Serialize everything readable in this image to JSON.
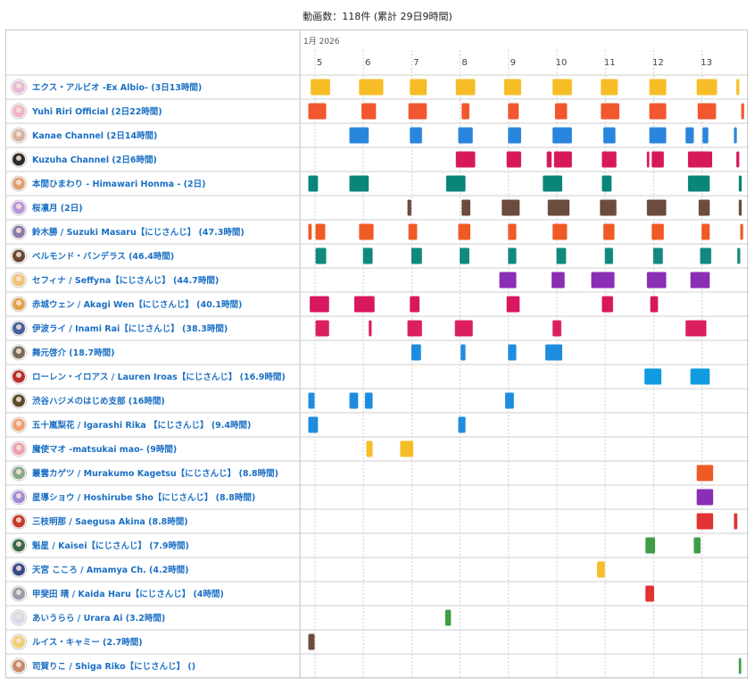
{
  "summary": "動画数：118件 (累計 29日9時間)",
  "timeline": {
    "month_label": "1月 2026",
    "ticks": [
      "5",
      "6",
      "7",
      "8",
      "9",
      "10",
      "11",
      "12",
      "13"
    ]
  },
  "channels": [
    {
      "label": "エクス・アルビオ -Ex Albio- (3日13時間)",
      "avatar": "#e7b9d9",
      "color": "#f6bd27",
      "streams": [
        [
          4.8,
          5.2
        ],
        [
          5.8,
          6.3
        ],
        [
          6.85,
          7.2
        ],
        [
          7.8,
          8.2
        ],
        [
          8.8,
          9.15
        ],
        [
          9.8,
          10.2
        ],
        [
          10.8,
          11.15
        ],
        [
          11.8,
          12.15
        ],
        [
          12.78,
          13.2
        ],
        [
          13.6,
          13.66
        ]
      ]
    },
    {
      "label": "Yuhi Riri Official (2日22時間)",
      "avatar": "#f2b3c7",
      "color": "#f2572f",
      "streams": [
        [
          4.75,
          5.12
        ],
        [
          5.85,
          6.15
        ],
        [
          6.82,
          7.2
        ],
        [
          7.92,
          8.08
        ],
        [
          8.88,
          9.1
        ],
        [
          9.85,
          10.1
        ],
        [
          10.8,
          11.18
        ],
        [
          11.8,
          12.15
        ],
        [
          12.8,
          13.18
        ],
        [
          13.7,
          13.76
        ]
      ]
    },
    {
      "label": "Kanae Channel (2日14時間)",
      "avatar": "#d6b3a0",
      "color": "#2a86dd",
      "streams": [
        [
          5.6,
          6.0
        ],
        [
          6.85,
          7.1
        ],
        [
          7.85,
          8.15
        ],
        [
          8.88,
          9.15
        ],
        [
          9.8,
          10.2
        ],
        [
          10.85,
          11.1
        ],
        [
          11.8,
          12.15
        ],
        [
          12.55,
          12.72
        ],
        [
          12.9,
          13.02
        ],
        [
          13.55,
          13.61
        ]
      ]
    },
    {
      "label": "Kuzuha Channel (2日6時間)",
      "avatar": "#2b2b2b",
      "color": "#d7185b",
      "streams": [
        [
          7.8,
          8.2
        ],
        [
          8.85,
          9.15
        ],
        [
          9.68,
          9.78
        ],
        [
          9.83,
          10.2
        ],
        [
          10.82,
          11.12
        ],
        [
          11.75,
          11.8
        ],
        [
          11.85,
          12.1
        ],
        [
          12.6,
          13.1
        ],
        [
          13.6,
          13.66
        ]
      ]
    },
    {
      "label": "本間ひまわり - Himawari Honma - (2日)",
      "avatar": "#e3a070",
      "color": "#0a857a",
      "streams": [
        [
          4.75,
          4.95
        ],
        [
          5.6,
          6.0
        ],
        [
          7.6,
          8.0
        ],
        [
          9.6,
          10.0
        ],
        [
          10.82,
          11.02
        ],
        [
          12.6,
          13.05
        ],
        [
          13.65,
          13.71
        ]
      ]
    },
    {
      "label": "桜凛月 (2日)",
      "avatar": "#b897d9",
      "color": "#6b4c3d",
      "streams": [
        [
          6.8,
          6.88
        ],
        [
          7.92,
          8.1
        ],
        [
          8.75,
          9.12
        ],
        [
          9.7,
          10.15
        ],
        [
          10.78,
          11.12
        ],
        [
          11.75,
          12.15
        ],
        [
          12.82,
          13.05
        ],
        [
          13.65,
          13.71
        ]
      ]
    },
    {
      "label": "鈴木勝 / Suzuki Masaru【にじさんじ】 (47.3時間)",
      "avatar": "#8a7ba8",
      "color": "#f05a24",
      "streams": [
        [
          4.75,
          4.82
        ],
        [
          4.9,
          5.1
        ],
        [
          5.8,
          6.1
        ],
        [
          6.82,
          7.0
        ],
        [
          7.85,
          8.1
        ],
        [
          8.88,
          9.05
        ],
        [
          9.8,
          10.1
        ],
        [
          10.85,
          11.08
        ],
        [
          11.85,
          12.1
        ],
        [
          12.88,
          13.05
        ],
        [
          13.68,
          13.74
        ]
      ]
    },
    {
      "label": "ベルモンド・バンデラス (46.4時間)",
      "avatar": "#6a4a34",
      "color": "#12897f",
      "streams": [
        [
          4.9,
          5.12
        ],
        [
          5.88,
          6.08
        ],
        [
          6.88,
          7.1
        ],
        [
          7.88,
          8.08
        ],
        [
          8.88,
          9.05
        ],
        [
          9.88,
          10.08
        ],
        [
          10.88,
          11.05
        ],
        [
          11.88,
          12.08
        ],
        [
          12.85,
          13.08
        ],
        [
          13.62,
          13.68
        ]
      ]
    },
    {
      "label": "セフィナ / Seffyna【にじさんじ】 (44.7時間)",
      "avatar": "#f2c27a",
      "color": "#8a2eb5",
      "streams": [
        [
          8.7,
          9.05
        ],
        [
          9.78,
          10.05
        ],
        [
          10.6,
          11.08
        ],
        [
          11.75,
          12.15
        ],
        [
          12.65,
          13.05
        ]
      ]
    },
    {
      "label": "赤城ウェン / Akagi Wen【にじさんじ】 (40.1時間)",
      "avatar": "#e2a24a",
      "color": "#d8185e",
      "streams": [
        [
          4.78,
          5.18
        ],
        [
          5.7,
          6.12
        ],
        [
          6.85,
          7.05
        ],
        [
          8.85,
          9.12
        ],
        [
          10.82,
          11.05
        ],
        [
          11.82,
          11.98
        ]
      ]
    },
    {
      "label": "伊波ライ / Inami Rai【にじさんじ】 (38.3時間)",
      "avatar": "#4a5fa0",
      "color": "#db1f5f",
      "streams": [
        [
          4.9,
          5.18
        ],
        [
          6.0,
          6.06
        ],
        [
          6.8,
          7.1
        ],
        [
          7.78,
          8.15
        ],
        [
          9.8,
          9.98
        ],
        [
          12.55,
          12.98
        ]
      ]
    },
    {
      "label": "舞元啓介 (18.7時間)",
      "avatar": "#7a6a5a",
      "color": "#1e8de0",
      "streams": [
        [
          6.88,
          7.08
        ],
        [
          7.9,
          8.0
        ],
        [
          8.88,
          9.05
        ],
        [
          9.65,
          10.0
        ]
      ]
    },
    {
      "label": "ローレン・イロアス / Lauren Iroas【にじさんじ】 (16.9時間)",
      "avatar": "#b83030",
      "color": "#109be0",
      "streams": [
        [
          11.7,
          12.05
        ],
        [
          12.65,
          13.05
        ]
      ]
    },
    {
      "label": "渋谷ハジメのはじめ支部 (16時間)",
      "avatar": "#5b4b2b",
      "color": "#1e8de0",
      "streams": [
        [
          4.75,
          4.88
        ],
        [
          5.6,
          5.78
        ],
        [
          5.92,
          6.08
        ],
        [
          8.82,
          9.0
        ]
      ]
    },
    {
      "label": "五十嵐梨花 / Igarashi Rika 【にじさんじ】 (9.4時間)",
      "avatar": "#f0a070",
      "color": "#1e8de0",
      "streams": [
        [
          4.75,
          4.95
        ],
        [
          7.85,
          8.0
        ]
      ]
    },
    {
      "label": "魔使マオ -matsukai mao- (9時間)",
      "avatar": "#f0a0b0",
      "color": "#f6bd27",
      "streams": [
        [
          5.95,
          6.08
        ],
        [
          6.65,
          6.92
        ]
      ]
    },
    {
      "label": "叢雲カゲツ / Murakumo Kagetsu【にじさんじ】 (8.8時間)",
      "avatar": "#88a888",
      "color": "#f05a24",
      "streams": [
        [
          12.78,
          13.12
        ]
      ]
    },
    {
      "label": "星導ショウ / Hoshirube Sho【にじさんじ】 (8.8時間)",
      "avatar": "#a28ad8",
      "color": "#8a2eb5",
      "streams": [
        [
          12.78,
          13.12
        ]
      ]
    },
    {
      "label": "三枝明那 / Saegusa Akina (8.8時間)",
      "avatar": "#c83a2a",
      "color": "#e23232",
      "streams": [
        [
          12.78,
          13.12
        ],
        [
          13.55,
          13.62
        ]
      ]
    },
    {
      "label": "魁星 / Kaisei【にじさんじ】 (7.9時間)",
      "avatar": "#3a6a4a",
      "color": "#3f9d48",
      "streams": [
        [
          11.72,
          11.92
        ],
        [
          12.72,
          12.86
        ]
      ]
    },
    {
      "label": "天宮 こころ / Amamya Ch. (4.2時間)",
      "avatar": "#3a4a8a",
      "color": "#f6bd27",
      "streams": [
        [
          10.72,
          10.88
        ]
      ]
    },
    {
      "label": "甲斐田 晴 / Kaida Haru【にじさんじ】 (4時間)",
      "avatar": "#9a9aa8",
      "color": "#e23232",
      "streams": [
        [
          11.72,
          11.9
        ]
      ]
    },
    {
      "label": "あいうらら / Urara Ai (3.2時間)",
      "avatar": "#d8d8e8",
      "color": "#3f9d48",
      "streams": [
        [
          7.58,
          7.7
        ]
      ]
    },
    {
      "label": "ルイス・キャミー (2.7時間)",
      "avatar": "#f0d070",
      "color": "#6b4c3d",
      "streams": [
        [
          4.75,
          4.88
        ]
      ]
    },
    {
      "label": "司賀りこ / Shiga Riko【にじさんじ】 ()",
      "avatar": "#c88a6a",
      "color": "#3f9d48",
      "streams": [
        [
          13.65,
          13.7
        ]
      ]
    }
  ]
}
